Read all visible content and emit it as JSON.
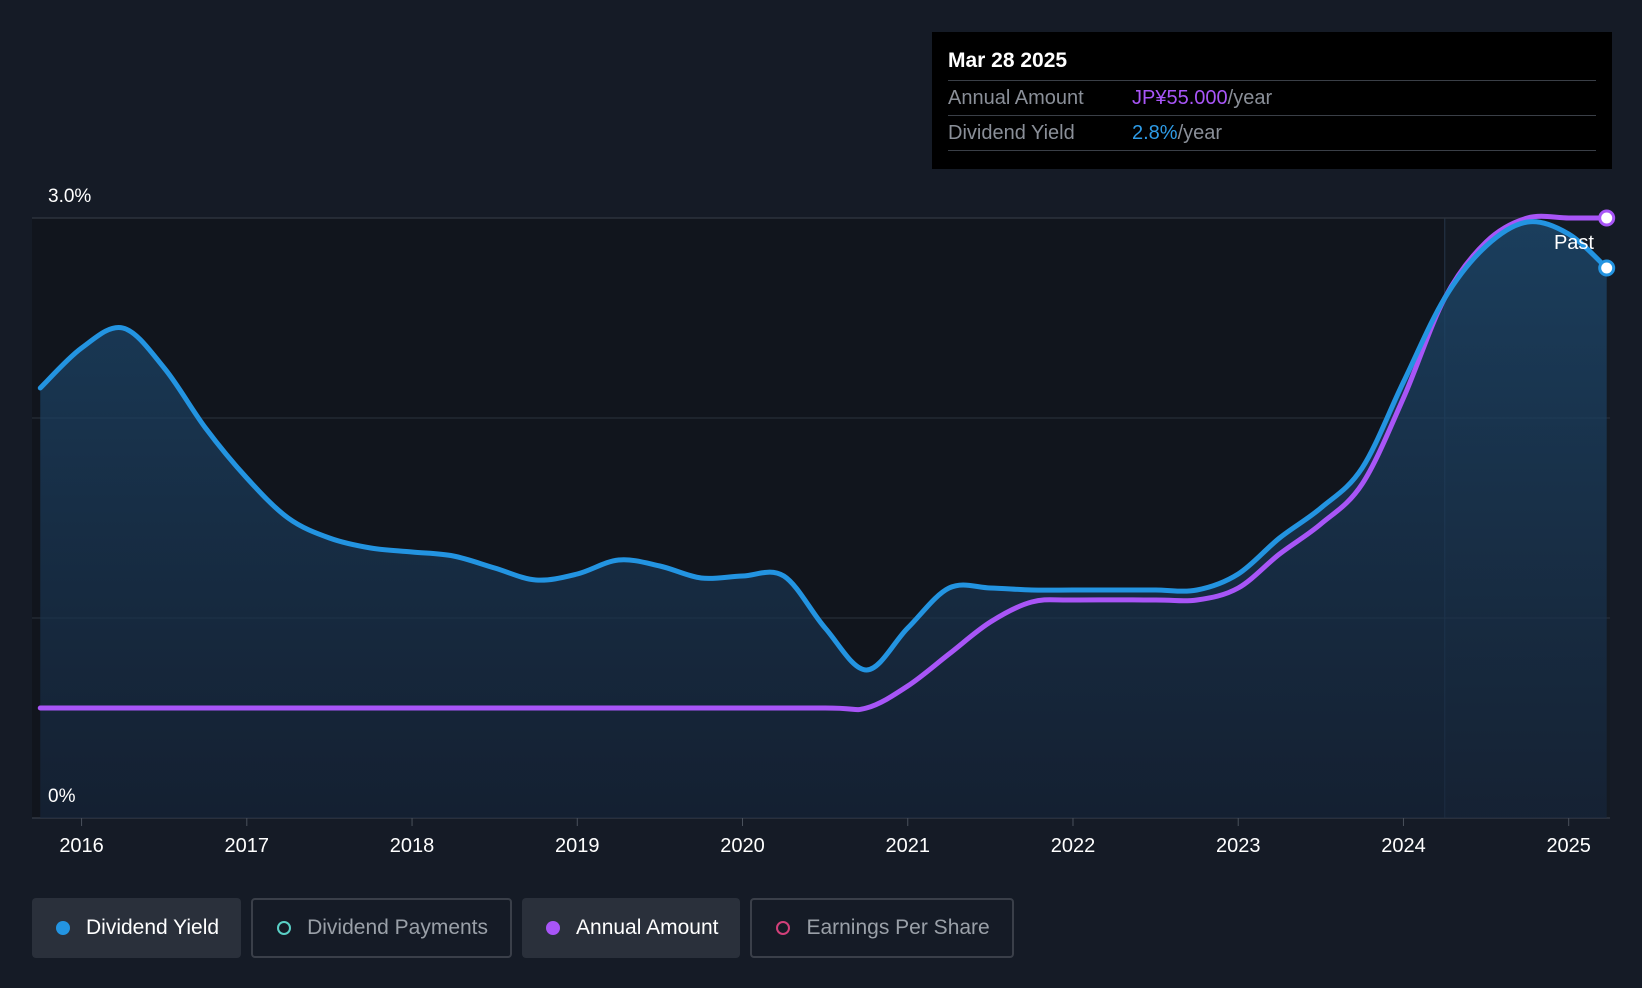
{
  "tooltip": {
    "date": "Mar 28 2025",
    "rows": [
      {
        "label": "Annual Amount",
        "value": "JP¥55.000",
        "unit": "/year"
      },
      {
        "label": "Dividend Yield",
        "value": "2.8%",
        "unit": "/year"
      }
    ]
  },
  "past_label": "Past",
  "legend": [
    {
      "label": "Dividend Yield",
      "color": "#2394e1",
      "filled": true,
      "active": true
    },
    {
      "label": "Dividend Payments",
      "color": "#5ad0c6",
      "filled": false,
      "active": false
    },
    {
      "label": "Annual Amount",
      "color": "#a855f7",
      "filled": true,
      "active": true
    },
    {
      "label": "Earnings Per Share",
      "color": "#d2407a",
      "filled": false,
      "active": false
    }
  ],
  "chart_data": {
    "type": "line",
    "y_axis": {
      "min": 0,
      "max": 3.0,
      "tick_labels": [
        "3.0%",
        "0%"
      ],
      "gridlines": [
        0,
        1.0,
        2.0,
        3.0
      ]
    },
    "x_axis": {
      "min": 2015.7,
      "max": 2025.25,
      "ticks": [
        "2016",
        "2017",
        "2018",
        "2019",
        "2020",
        "2021",
        "2022",
        "2023",
        "2024",
        "2025"
      ]
    },
    "past_from": 2024.25,
    "series": [
      {
        "name": "Dividend Yield",
        "color": "#2394e1",
        "area": true,
        "points": [
          [
            2015.75,
            2.15
          ],
          [
            2016.0,
            2.35
          ],
          [
            2016.25,
            2.45
          ],
          [
            2016.5,
            2.25
          ],
          [
            2016.75,
            1.95
          ],
          [
            2017.0,
            1.7
          ],
          [
            2017.25,
            1.5
          ],
          [
            2017.5,
            1.4
          ],
          [
            2017.75,
            1.35
          ],
          [
            2018.0,
            1.33
          ],
          [
            2018.25,
            1.31
          ],
          [
            2018.5,
            1.25
          ],
          [
            2018.75,
            1.19
          ],
          [
            2019.0,
            1.22
          ],
          [
            2019.25,
            1.29
          ],
          [
            2019.5,
            1.26
          ],
          [
            2019.75,
            1.2
          ],
          [
            2020.0,
            1.21
          ],
          [
            2020.25,
            1.21
          ],
          [
            2020.5,
            0.95
          ],
          [
            2020.75,
            0.74
          ],
          [
            2021.0,
            0.95
          ],
          [
            2021.25,
            1.15
          ],
          [
            2021.5,
            1.15
          ],
          [
            2021.75,
            1.14
          ],
          [
            2022.0,
            1.14
          ],
          [
            2022.25,
            1.14
          ],
          [
            2022.5,
            1.14
          ],
          [
            2022.75,
            1.14
          ],
          [
            2023.0,
            1.22
          ],
          [
            2023.25,
            1.4
          ],
          [
            2023.5,
            1.55
          ],
          [
            2023.75,
            1.75
          ],
          [
            2024.0,
            2.18
          ],
          [
            2024.25,
            2.6
          ],
          [
            2024.5,
            2.86
          ],
          [
            2024.75,
            2.98
          ],
          [
            2025.0,
            2.92
          ],
          [
            2025.23,
            2.75
          ]
        ]
      },
      {
        "name": "Annual Amount",
        "color": "#a855f7",
        "area": false,
        "points": [
          [
            2015.75,
            0.55
          ],
          [
            2016.5,
            0.55
          ],
          [
            2017.5,
            0.55
          ],
          [
            2018.5,
            0.55
          ],
          [
            2019.5,
            0.55
          ],
          [
            2020.5,
            0.55
          ],
          [
            2020.75,
            0.55
          ],
          [
            2021.0,
            0.66
          ],
          [
            2021.25,
            0.82
          ],
          [
            2021.5,
            0.98
          ],
          [
            2021.75,
            1.08
          ],
          [
            2022.0,
            1.09
          ],
          [
            2022.5,
            1.09
          ],
          [
            2022.75,
            1.09
          ],
          [
            2023.0,
            1.15
          ],
          [
            2023.25,
            1.32
          ],
          [
            2023.5,
            1.47
          ],
          [
            2023.75,
            1.67
          ],
          [
            2024.0,
            2.1
          ],
          [
            2024.25,
            2.6
          ],
          [
            2024.5,
            2.88
          ],
          [
            2024.75,
            3.0
          ],
          [
            2025.0,
            3.0
          ],
          [
            2025.23,
            3.0
          ]
        ]
      }
    ]
  }
}
